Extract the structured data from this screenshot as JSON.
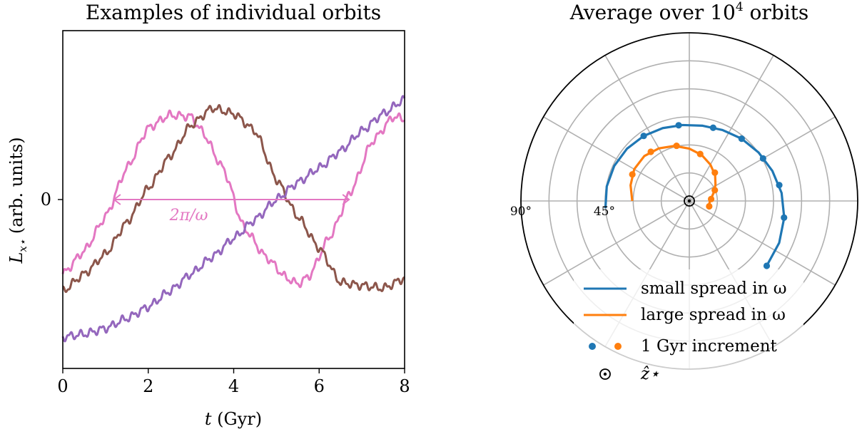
{
  "chart_data": [
    {
      "type": "line",
      "title": "Examples of individual orbits",
      "xlabel": "t (Gyr)",
      "ylabel": "L_x⋆ (arb. units)",
      "ylabel_main": "L",
      "ylabel_sub": "x⋆",
      "ylabel_units": " (arb. units)",
      "xlabel_var": "t",
      "xlabel_units": " (Gyr)",
      "xlim": [
        0,
        8
      ],
      "ylim": [
        -1.18,
        1.18
      ],
      "xticks": [
        "0",
        "2",
        "4",
        "6",
        "8"
      ],
      "yticks": [
        "0"
      ],
      "grid": false,
      "annotation": "2π/ω",
      "annotation_span": [
        1.2,
        6.7
      ],
      "series": [
        {
          "color": "#e377c2",
          "x": [
            0,
            0.5,
            1.0,
            1.5,
            2.0,
            2.5,
            3.0,
            3.25,
            3.75,
            4.25,
            4.75,
            5.25,
            5.5,
            5.75,
            6.25,
            6.75,
            7.25,
            7.75,
            8.0
          ],
          "y": [
            -0.52,
            -0.36,
            -0.12,
            0.22,
            0.5,
            0.59,
            0.58,
            0.48,
            0.22,
            -0.2,
            -0.4,
            -0.55,
            -0.59,
            -0.54,
            -0.26,
            0.06,
            0.41,
            0.58,
            0.56
          ]
        },
        {
          "color": "#8c564b",
          "x": [
            0,
            0.5,
            1.0,
            1.5,
            2.0,
            2.5,
            3.0,
            3.5,
            4.0,
            4.5,
            5.0,
            5.5,
            6.0,
            6.5,
            7.0,
            7.5,
            8.0
          ],
          "y": [
            -0.64,
            -0.52,
            -0.38,
            -0.16,
            0.08,
            0.3,
            0.52,
            0.64,
            0.6,
            0.48,
            0.14,
            -0.12,
            -0.34,
            -0.58,
            -0.6,
            -0.62,
            -0.55
          ]
        },
        {
          "color": "#9467bd",
          "x": [
            0,
            0.5,
            1.0,
            1.5,
            2.0,
            2.5,
            3.0,
            3.5,
            4.0,
            4.5,
            5.0,
            5.5,
            6.0,
            6.5,
            7.0,
            7.5,
            8.0
          ],
          "y": [
            -0.96,
            -0.94,
            -0.9,
            -0.83,
            -0.75,
            -0.64,
            -0.52,
            -0.4,
            -0.27,
            -0.14,
            0.0,
            0.12,
            0.22,
            0.34,
            0.48,
            0.6,
            0.7
          ]
        }
      ]
    },
    {
      "type": "polar",
      "title": "Average over 10⁴ orbits",
      "title_main": "Average over 10",
      "title_sup": "4",
      "title_tail": " orbits",
      "r_max_deg": 90,
      "r_grid_deg": [
        15,
        30,
        45,
        60,
        75
      ],
      "theta_grid_deg": [
        0,
        30,
        60,
        90,
        120,
        150,
        180,
        210,
        240,
        270,
        300,
        330
      ],
      "r_labels": [
        "90°",
        "45°"
      ],
      "grid": true,
      "legend_position": "lower-center",
      "legend": {
        "small": "small spread in ω",
        "large": "large spread in ω",
        "increment": "1 Gyr increment",
        "zhat": "ẑ⋆"
      },
      "series": [
        {
          "name": "small spread in ω",
          "color": "#1f77b4",
          "points": [
            [
              185,
              45
            ],
            [
              170,
              44.8
            ],
            [
              155,
              44.3
            ],
            [
              140,
              43.5
            ],
            [
              125,
              42.5
            ],
            [
              110,
              41.5
            ],
            [
              95,
              40.8
            ],
            [
              80,
              40.9
            ],
            [
              65,
              41.9
            ],
            [
              50,
              43.5
            ],
            [
              35,
              45.2
            ],
            [
              20,
              47.2
            ],
            [
              5,
              49.5
            ],
            [
              -10,
              51.5
            ],
            [
              -25,
              53.0
            ],
            [
              -40,
              54.0
            ]
          ]
        },
        {
          "name": "large spread in ω",
          "color": "#ff7f0e",
          "points": [
            [
              180,
              30.5
            ],
            [
              165,
              32.5
            ],
            [
              150,
              34.0
            ],
            [
              135,
              34.0
            ],
            [
              120,
              32.5
            ],
            [
              105,
              30.5
            ],
            [
              90,
              28.0
            ],
            [
              75,
              25.5
            ],
            [
              60,
              22.5
            ],
            [
              45,
              19.5
            ],
            [
              32,
              16.5
            ],
            [
              20,
              14.0
            ],
            [
              10,
              12.2
            ],
            [
              0,
              11.0
            ],
            [
              -10,
              10.8
            ],
            [
              -17,
              11.2
            ]
          ]
        }
      ],
      "markers": [
        {
          "color": "#1f77b4",
          "points": [
            [
              125,
              42.5
            ],
            [
              98,
              40.9
            ],
            [
              72,
              41.2
            ],
            [
              50,
              43.5
            ],
            [
              30,
              45.5
            ],
            [
              10,
              48.8
            ],
            [
              -10,
              51.4
            ],
            [
              -40,
              54.0
            ]
          ]
        },
        {
          "color": "#ff7f0e",
          "points": [
            [
              155,
              33.6
            ],
            [
              128,
              33.4
            ],
            [
              103,
              30.3
            ],
            [
              77,
              25.8
            ],
            [
              48,
              20.4
            ],
            [
              23,
              14.8
            ],
            [
              5,
              11.7
            ],
            [
              -15,
              11.0
            ]
          ]
        }
      ]
    }
  ]
}
